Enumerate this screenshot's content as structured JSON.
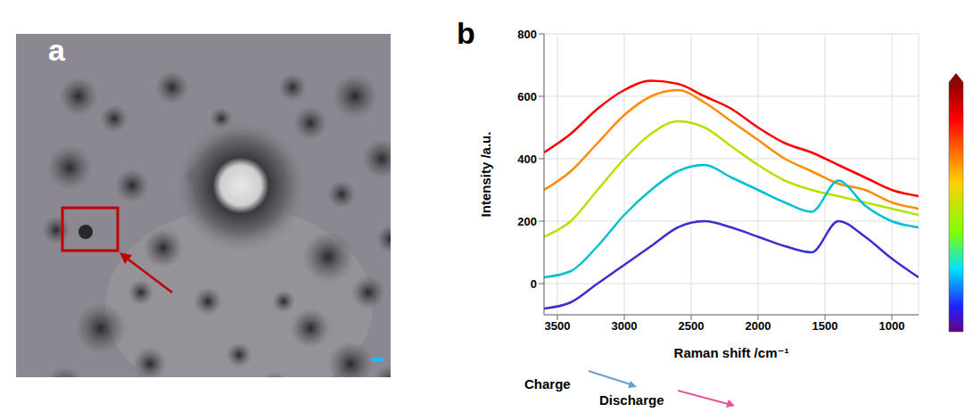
{
  "panel_letters": [
    "a",
    "b"
  ],
  "chart_data": {
    "type": "line",
    "x_label": "Raman shift /cm⁻¹",
    "y_label": "Intensity /a.u.",
    "annotations": [
      "Charge",
      "Discharge"
    ],
    "x": [
      3600,
      3400,
      3200,
      3000,
      2800,
      2600,
      2400,
      2200,
      2000,
      1800,
      1600,
      1400,
      1200,
      1000,
      800
    ],
    "series": [
      {
        "color": "#ff0000",
        "values": [
          420,
          480,
          560,
          620,
          650,
          640,
          600,
          560,
          500,
          450,
          420,
          380,
          340,
          300,
          280
        ]
      },
      {
        "color": "#ff8c00",
        "values": [
          300,
          360,
          450,
          540,
          600,
          620,
          580,
          520,
          460,
          400,
          360,
          320,
          300,
          260,
          240
        ]
      },
      {
        "color": "#b8e000",
        "values": [
          150,
          200,
          300,
          400,
          480,
          520,
          500,
          440,
          380,
          330,
          300,
          280,
          260,
          240,
          220
        ]
      },
      {
        "color": "#00c0d0",
        "values": [
          20,
          40,
          120,
          220,
          300,
          360,
          380,
          340,
          300,
          260,
          230,
          330,
          250,
          200,
          180
        ]
      },
      {
        "color": "#3a2fd0",
        "values": [
          -80,
          -60,
          0,
          60,
          120,
          180,
          200,
          180,
          150,
          120,
          100,
          200,
          150,
          80,
          20
        ]
      }
    ],
    "xlim": [
      3600,
      800
    ],
    "xticks": [
      1000,
      1500,
      2000,
      2500,
      3000,
      3500
    ],
    "ylim": [
      -100,
      800
    ],
    "yticks": [
      0,
      200,
      400,
      600,
      800
    ],
    "grid": true
  }
}
